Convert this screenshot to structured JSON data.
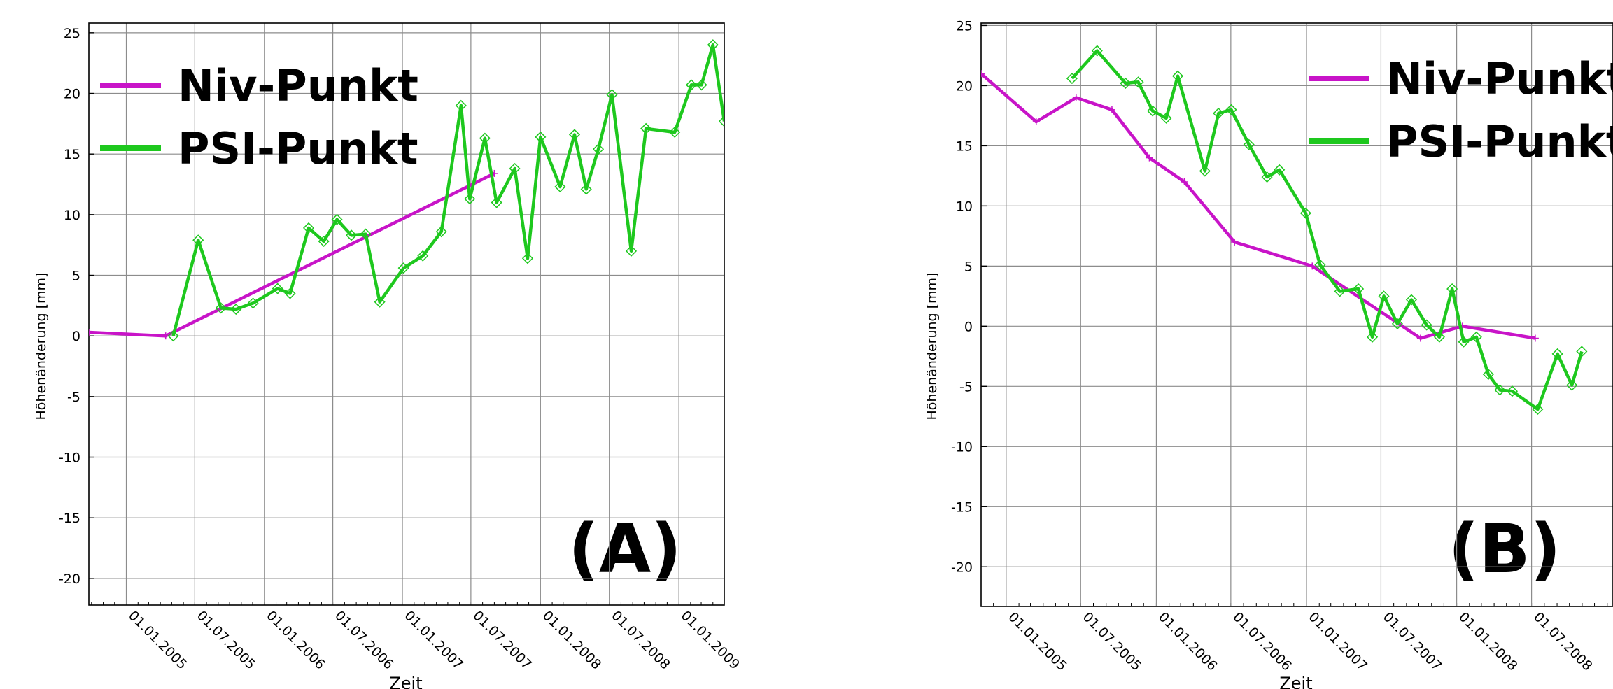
{
  "chart_data": [
    {
      "type": "line",
      "panel_label": "(A)",
      "xlabel": "Zeit",
      "ylabel": "Höhenänderung [mm]",
      "ylim": [
        -22.2,
        25.8
      ],
      "xlim": [
        "2004-09-24",
        "2009-05-01"
      ],
      "yticks": [
        -20,
        -15,
        -10,
        -5,
        0,
        5,
        10,
        15,
        20,
        25
      ],
      "xticks": [
        "01.01.2005",
        "01.07.2005",
        "01.01.2006",
        "01.07.2006",
        "01.01.2007",
        "01.07.2007",
        "01.01.2008",
        "01.07.2008",
        "01.01.2009"
      ],
      "grid": true,
      "legend": "top-left",
      "series": [
        {
          "name": "Niv-Punkt",
          "color": "#c814c8",
          "marker": "plus",
          "x": [
            "2004-09-24",
            "2005-04-15",
            "2007-09-01"
          ],
          "y": [
            0.3,
            0.0,
            13.4
          ]
        },
        {
          "name": "PSI-Punkt",
          "color": "#1ec81e",
          "marker": "diamond",
          "x": [
            "2005-05-05",
            "2005-07-10",
            "2005-09-08",
            "2005-10-18",
            "2005-12-02",
            "2006-02-05",
            "2006-03-10",
            "2006-04-28",
            "2006-06-07",
            "2006-07-12",
            "2006-08-19",
            "2006-09-26",
            "2006-11-02",
            "2007-01-04",
            "2007-02-24",
            "2007-04-14",
            "2007-06-05",
            "2007-06-28",
            "2007-08-07",
            "2007-09-07",
            "2007-10-25",
            "2007-11-28",
            "2008-01-01",
            "2008-02-22",
            "2008-03-31",
            "2008-05-01",
            "2008-06-02",
            "2008-07-08",
            "2008-08-28",
            "2008-10-06",
            "2008-12-21",
            "2009-02-03",
            "2009-03-02",
            "2009-04-01",
            "2009-05-01"
          ],
          "y": [
            0.0,
            7.9,
            2.3,
            2.2,
            2.7,
            3.9,
            3.5,
            8.9,
            7.8,
            9.6,
            8.3,
            8.4,
            2.8,
            5.6,
            6.6,
            8.6,
            19.0,
            11.3,
            16.3,
            11.0,
            13.8,
            6.4,
            16.4,
            12.3,
            16.6,
            12.1,
            15.4,
            19.9,
            7.0,
            17.1,
            16.8,
            20.7,
            20.7,
            24.0,
            17.7
          ]
        }
      ]
    },
    {
      "type": "line",
      "panel_label": "(B)",
      "xlabel": "Zeit",
      "ylabel": "Höhenänderung [mm]",
      "ylim": [
        -23.3,
        25.2
      ],
      "xlim": [
        "2004-11-01",
        "2009-01-15"
      ],
      "yticks": [
        -20,
        -15,
        -10,
        -5,
        0,
        5,
        10,
        15,
        20,
        25
      ],
      "xticks": [
        "01.01.2005",
        "01.07.2005",
        "01.01.2006",
        "01.07.2006",
        "01.01.2007",
        "01.07.2007",
        "01.01.2008",
        "01.07.2008"
      ],
      "grid": true,
      "legend": "top-right",
      "series": [
        {
          "name": "Niv-Punkt",
          "color": "#c814c8",
          "marker": "plus",
          "x": [
            "2004-11-01",
            "2005-03-15",
            "2005-06-20",
            "2005-09-15",
            "2005-12-15",
            "2006-03-10",
            "2006-07-10",
            "2007-01-15",
            "2007-10-05",
            "2008-01-15",
            "2008-07-10"
          ],
          "y": [
            21.0,
            17.0,
            19.0,
            18.0,
            14.0,
            12.0,
            7.0,
            5.0,
            -1.0,
            0.0,
            -1.0
          ]
        },
        {
          "name": "PSI-Punkt",
          "color": "#1ec81e",
          "marker": "diamond",
          "x": [
            "2005-06-10",
            "2005-08-10",
            "2005-10-18",
            "2005-11-18",
            "2005-12-23",
            "2006-01-25",
            "2006-02-22",
            "2006-04-29",
            "2006-06-01",
            "2006-07-02",
            "2006-08-14",
            "2006-09-27",
            "2006-10-27",
            "2006-12-30",
            "2007-02-03",
            "2007-03-23",
            "2007-05-07",
            "2007-06-10",
            "2007-07-08",
            "2007-08-10",
            "2007-09-13",
            "2007-10-20",
            "2007-11-20",
            "2007-12-21",
            "2008-01-18",
            "2008-02-18",
            "2008-03-18",
            "2008-04-15",
            "2008-05-15",
            "2008-07-16",
            "2008-09-02",
            "2008-10-07",
            "2008-10-31"
          ],
          "y": [
            20.6,
            22.9,
            20.2,
            20.3,
            17.9,
            17.3,
            20.8,
            12.9,
            17.7,
            18.0,
            15.1,
            12.4,
            13.0,
            9.4,
            5.1,
            2.9,
            3.1,
            -0.9,
            2.5,
            0.2,
            2.2,
            0.1,
            -0.9,
            3.1,
            -1.3,
            -0.9,
            -4.0,
            -5.3,
            -5.4,
            -6.9,
            -2.3,
            -4.9,
            -2.1
          ]
        }
      ]
    }
  ]
}
